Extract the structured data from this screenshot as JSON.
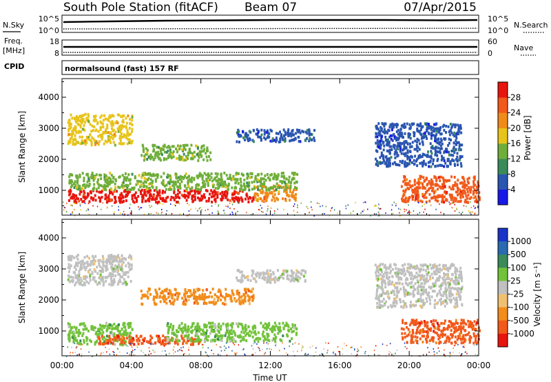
{
  "header": {
    "station": "South Pole Station (fitACF)",
    "beam": "Beam 07",
    "date": "07/Apr/2015"
  },
  "strip_panels": {
    "nsky": {
      "label": "N.Sky",
      "ticks": [
        "10^5",
        "10^0"
      ]
    },
    "nsearch": {
      "label": "N.Search",
      "ticks": [
        "10^5",
        "10^0"
      ]
    },
    "freq": {
      "label_line1": "Freq.",
      "label_line2": "[MHz]",
      "ticks": [
        "18",
        "8"
      ]
    },
    "nave": {
      "label": "Nave",
      "ticks": [
        "60",
        "0"
      ]
    },
    "cpid": {
      "label": "CPID",
      "text": "normalsound (fast) 157 RF"
    }
  },
  "chart_data": [
    {
      "type": "heatmap",
      "name": "power",
      "ylabel": "Slant Range [km]",
      "y_ticks": [
        1000,
        2000,
        3000,
        4000
      ],
      "ylim": [
        200,
        4600
      ],
      "xlabel": "",
      "x_ticks": [
        "00:00",
        "04:00",
        "08:00",
        "12:00",
        "16:00",
        "20:00",
        "00:00"
      ],
      "xlim_hours": [
        0,
        24
      ],
      "colorbar": {
        "label": "Power [dB]",
        "ticks": [
          "4",
          "8",
          "12",
          "16",
          "20",
          "24",
          "28"
        ],
        "colors": [
          "#1818e8",
          "#2a55b0",
          "#3b8b5a",
          "#6fae3a",
          "#e8c41a",
          "#f08b1a",
          "#f2591a",
          "#e8150e"
        ]
      },
      "bands": [
        {
          "t0": 0.3,
          "t1": 11.0,
          "r0": 650,
          "r1": 1050,
          "level": 28
        },
        {
          "t0": 11.0,
          "t1": 13.5,
          "r0": 700,
          "r1": 1200,
          "level": 20
        },
        {
          "t0": 0.3,
          "t1": 13.5,
          "r0": 1050,
          "r1": 1600,
          "level": 12
        },
        {
          "t0": 0.3,
          "t1": 4.0,
          "r0": 2500,
          "r1": 3500,
          "level": 16
        },
        {
          "t0": 4.5,
          "t1": 8.5,
          "r0": 2000,
          "r1": 2500,
          "level": 12
        },
        {
          "t0": 10.0,
          "t1": 14.5,
          "r0": 2600,
          "r1": 3000,
          "level": 4
        },
        {
          "t0": 18.0,
          "t1": 23.0,
          "r0": 1800,
          "r1": 3200,
          "level": 4
        },
        {
          "t0": 19.5,
          "t1": 24.0,
          "r0": 650,
          "r1": 1500,
          "level": 24
        }
      ]
    },
    {
      "type": "heatmap",
      "name": "velocity",
      "ylabel": "Slant Range [km]",
      "y_ticks": [
        1000,
        2000,
        3000,
        4000
      ],
      "ylim": [
        200,
        4600
      ],
      "xlabel": "Time UT",
      "x_ticks": [
        "00:00",
        "04:00",
        "08:00",
        "12:00",
        "16:00",
        "20:00",
        "00:00"
      ],
      "xlim_hours": [
        0,
        24
      ],
      "colorbar": {
        "label": "Velocity [m s⁻¹]",
        "ticks": [
          "1000",
          "500",
          "100",
          "25",
          "-25",
          "-100",
          "-500",
          "-1000"
        ],
        "colors": [
          "#1a34c8",
          "#2a6ab0",
          "#3a8a5a",
          "#72c23a",
          "#c0c0c0",
          "#f0c070",
          "#f28c1a",
          "#f2591a",
          "#e8150e"
        ]
      },
      "bands": [
        {
          "t0": 0.3,
          "t1": 4.0,
          "r0": 600,
          "r1": 1300,
          "level": 100
        },
        {
          "t0": 2.0,
          "t1": 8.0,
          "r0": 600,
          "r1": 900,
          "level": -500
        },
        {
          "t0": 6.0,
          "t1": 13.5,
          "r0": 700,
          "r1": 1300,
          "level": 100
        },
        {
          "t0": 0.3,
          "t1": 4.0,
          "r0": 2500,
          "r1": 3500,
          "level": 25
        },
        {
          "t0": 4.5,
          "t1": 11.0,
          "r0": 1900,
          "r1": 2400,
          "level": -100
        },
        {
          "t0": 10.0,
          "t1": 14.0,
          "r0": 2600,
          "r1": 3000,
          "level": 25
        },
        {
          "t0": 18.0,
          "t1": 23.0,
          "r0": 1800,
          "r1": 3200,
          "level": 25
        },
        {
          "t0": 19.5,
          "t1": 24.0,
          "r0": 650,
          "r1": 1400,
          "level": -500
        }
      ]
    }
  ]
}
